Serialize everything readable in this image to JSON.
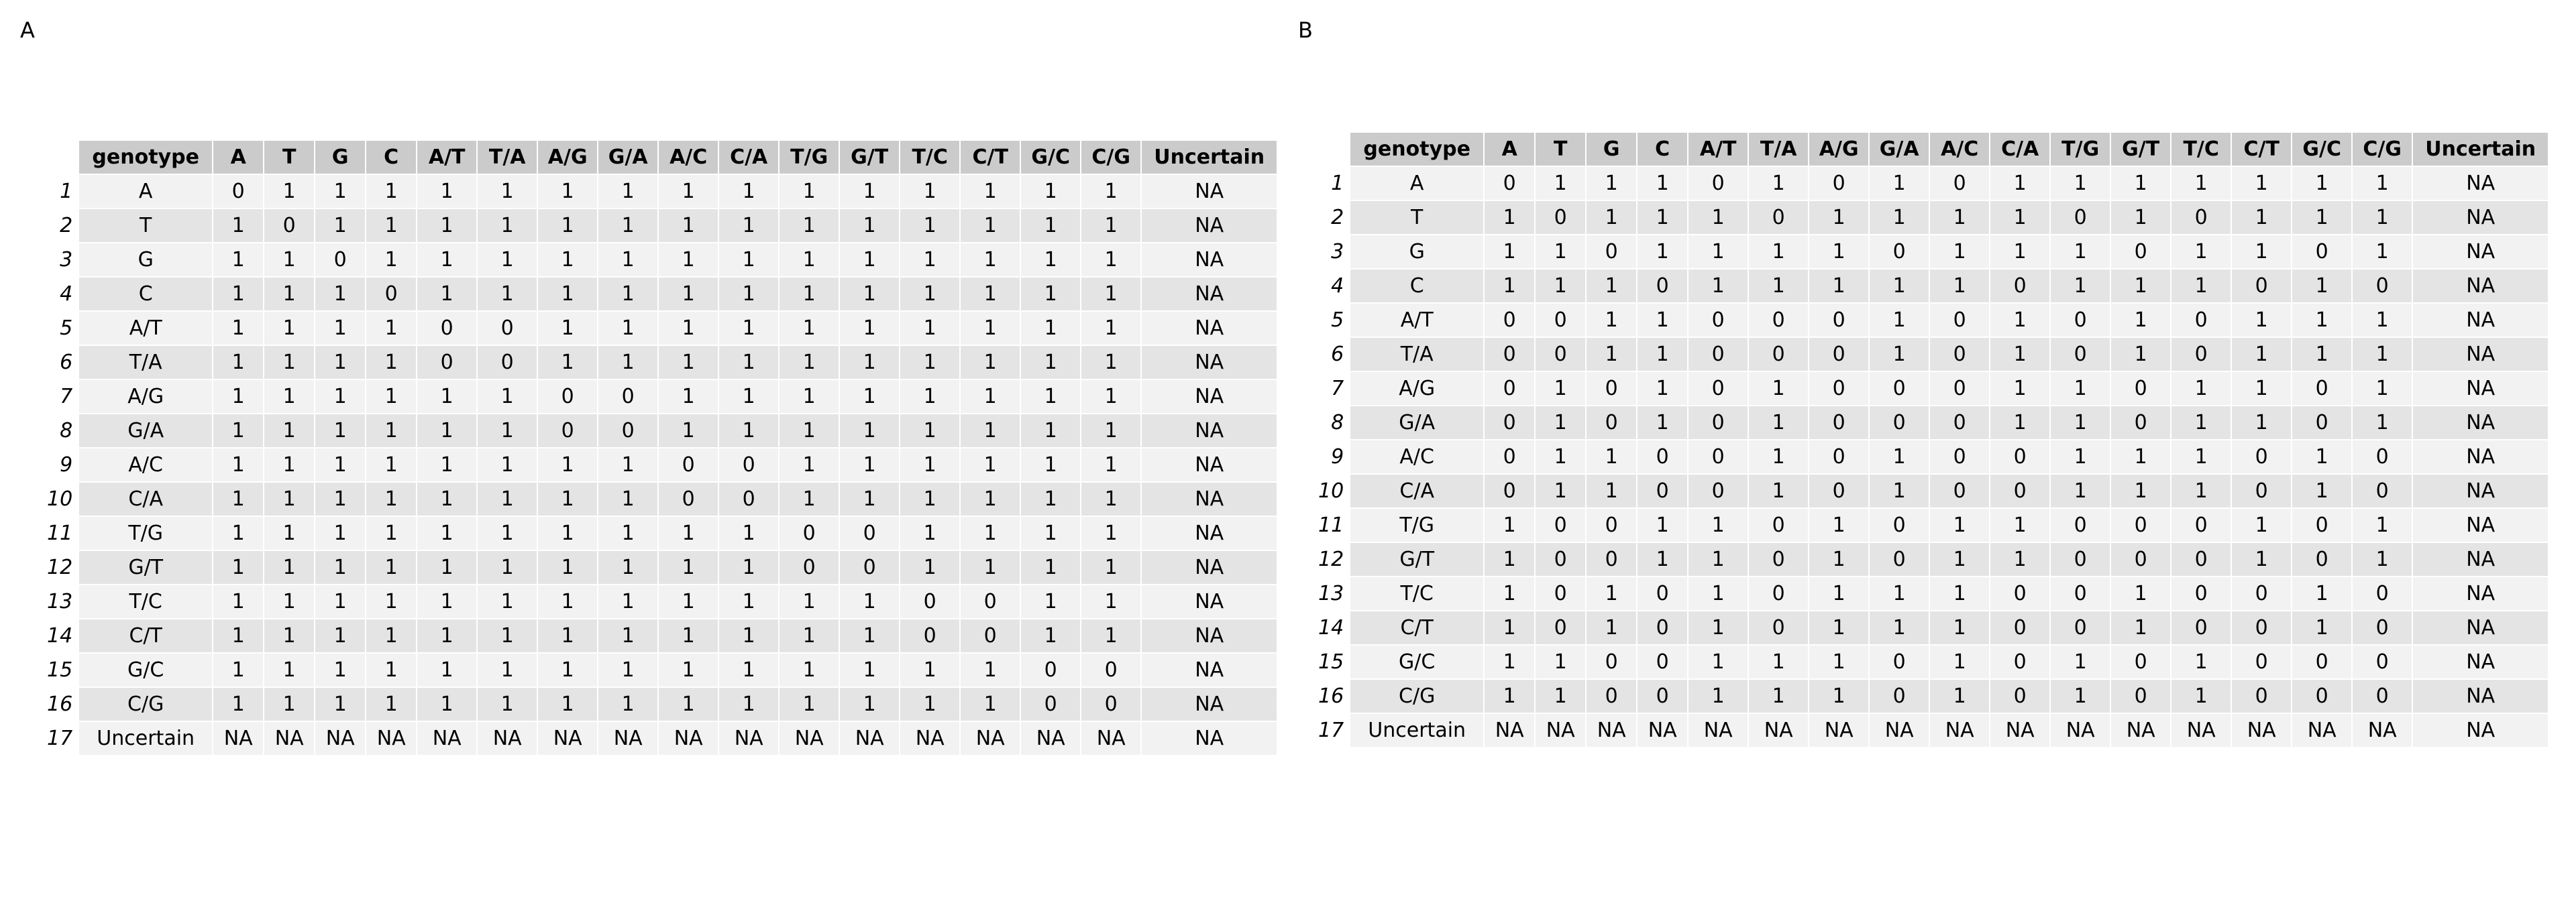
{
  "panels": [
    {
      "label": "A",
      "columns": [
        "genotype",
        "A",
        "T",
        "G",
        "C",
        "A/T",
        "T/A",
        "A/G",
        "G/A",
        "A/C",
        "C/A",
        "T/G",
        "G/T",
        "T/C",
        "C/T",
        "G/C",
        "C/G",
        "Uncertain"
      ],
      "rows": [
        [
          "1",
          "A",
          "0",
          "1",
          "1",
          "1",
          "1",
          "1",
          "1",
          "1",
          "1",
          "1",
          "1",
          "1",
          "1",
          "1",
          "1",
          "1",
          "NA"
        ],
        [
          "2",
          "T",
          "1",
          "0",
          "1",
          "1",
          "1",
          "1",
          "1",
          "1",
          "1",
          "1",
          "1",
          "1",
          "1",
          "1",
          "1",
          "1",
          "NA"
        ],
        [
          "3",
          "G",
          "1",
          "1",
          "0",
          "1",
          "1",
          "1",
          "1",
          "1",
          "1",
          "1",
          "1",
          "1",
          "1",
          "1",
          "1",
          "1",
          "NA"
        ],
        [
          "4",
          "C",
          "1",
          "1",
          "1",
          "0",
          "1",
          "1",
          "1",
          "1",
          "1",
          "1",
          "1",
          "1",
          "1",
          "1",
          "1",
          "1",
          "NA"
        ],
        [
          "5",
          "A/T",
          "1",
          "1",
          "1",
          "1",
          "0",
          "0",
          "1",
          "1",
          "1",
          "1",
          "1",
          "1",
          "1",
          "1",
          "1",
          "1",
          "NA"
        ],
        [
          "6",
          "T/A",
          "1",
          "1",
          "1",
          "1",
          "0",
          "0",
          "1",
          "1",
          "1",
          "1",
          "1",
          "1",
          "1",
          "1",
          "1",
          "1",
          "NA"
        ],
        [
          "7",
          "A/G",
          "1",
          "1",
          "1",
          "1",
          "1",
          "1",
          "0",
          "0",
          "1",
          "1",
          "1",
          "1",
          "1",
          "1",
          "1",
          "1",
          "NA"
        ],
        [
          "8",
          "G/A",
          "1",
          "1",
          "1",
          "1",
          "1",
          "1",
          "0",
          "0",
          "1",
          "1",
          "1",
          "1",
          "1",
          "1",
          "1",
          "1",
          "NA"
        ],
        [
          "9",
          "A/C",
          "1",
          "1",
          "1",
          "1",
          "1",
          "1",
          "1",
          "1",
          "0",
          "0",
          "1",
          "1",
          "1",
          "1",
          "1",
          "1",
          "NA"
        ],
        [
          "10",
          "C/A",
          "1",
          "1",
          "1",
          "1",
          "1",
          "1",
          "1",
          "1",
          "0",
          "0",
          "1",
          "1",
          "1",
          "1",
          "1",
          "1",
          "NA"
        ],
        [
          "11",
          "T/G",
          "1",
          "1",
          "1",
          "1",
          "1",
          "1",
          "1",
          "1",
          "1",
          "1",
          "0",
          "0",
          "1",
          "1",
          "1",
          "1",
          "NA"
        ],
        [
          "12",
          "G/T",
          "1",
          "1",
          "1",
          "1",
          "1",
          "1",
          "1",
          "1",
          "1",
          "1",
          "0",
          "0",
          "1",
          "1",
          "1",
          "1",
          "NA"
        ],
        [
          "13",
          "T/C",
          "1",
          "1",
          "1",
          "1",
          "1",
          "1",
          "1",
          "1",
          "1",
          "1",
          "1",
          "1",
          "0",
          "0",
          "1",
          "1",
          "NA"
        ],
        [
          "14",
          "C/T",
          "1",
          "1",
          "1",
          "1",
          "1",
          "1",
          "1",
          "1",
          "1",
          "1",
          "1",
          "1",
          "0",
          "0",
          "1",
          "1",
          "NA"
        ],
        [
          "15",
          "G/C",
          "1",
          "1",
          "1",
          "1",
          "1",
          "1",
          "1",
          "1",
          "1",
          "1",
          "1",
          "1",
          "1",
          "1",
          "0",
          "0",
          "NA"
        ],
        [
          "16",
          "C/G",
          "1",
          "1",
          "1",
          "1",
          "1",
          "1",
          "1",
          "1",
          "1",
          "1",
          "1",
          "1",
          "1",
          "1",
          "0",
          "0",
          "NA"
        ],
        [
          "17",
          "Uncertain",
          "NA",
          "NA",
          "NA",
          "NA",
          "NA",
          "NA",
          "NA",
          "NA",
          "NA",
          "NA",
          "NA",
          "NA",
          "NA",
          "NA",
          "NA",
          "NA",
          "NA"
        ]
      ]
    },
    {
      "label": "B",
      "columns": [
        "genotype",
        "A",
        "T",
        "G",
        "C",
        "A/T",
        "T/A",
        "A/G",
        "G/A",
        "A/C",
        "C/A",
        "T/G",
        "G/T",
        "T/C",
        "C/T",
        "G/C",
        "C/G",
        "Uncertain"
      ],
      "rows": [
        [
          "1",
          "A",
          "0",
          "1",
          "1",
          "1",
          "0",
          "1",
          "0",
          "1",
          "0",
          "1",
          "1",
          "1",
          "1",
          "1",
          "1",
          "1",
          "NA"
        ],
        [
          "2",
          "T",
          "1",
          "0",
          "1",
          "1",
          "1",
          "0",
          "1",
          "1",
          "1",
          "1",
          "0",
          "1",
          "0",
          "1",
          "1",
          "1",
          "NA"
        ],
        [
          "3",
          "G",
          "1",
          "1",
          "0",
          "1",
          "1",
          "1",
          "1",
          "0",
          "1",
          "1",
          "1",
          "0",
          "1",
          "1",
          "0",
          "1",
          "NA"
        ],
        [
          "4",
          "C",
          "1",
          "1",
          "1",
          "0",
          "1",
          "1",
          "1",
          "1",
          "1",
          "0",
          "1",
          "1",
          "1",
          "0",
          "1",
          "0",
          "NA"
        ],
        [
          "5",
          "A/T",
          "0",
          "0",
          "1",
          "1",
          "0",
          "0",
          "0",
          "1",
          "0",
          "1",
          "0",
          "1",
          "0",
          "1",
          "1",
          "1",
          "NA"
        ],
        [
          "6",
          "T/A",
          "0",
          "0",
          "1",
          "1",
          "0",
          "0",
          "0",
          "1",
          "0",
          "1",
          "0",
          "1",
          "0",
          "1",
          "1",
          "1",
          "NA"
        ],
        [
          "7",
          "A/G",
          "0",
          "1",
          "0",
          "1",
          "0",
          "1",
          "0",
          "0",
          "0",
          "1",
          "1",
          "0",
          "1",
          "1",
          "0",
          "1",
          "NA"
        ],
        [
          "8",
          "G/A",
          "0",
          "1",
          "0",
          "1",
          "0",
          "1",
          "0",
          "0",
          "0",
          "1",
          "1",
          "0",
          "1",
          "1",
          "0",
          "1",
          "NA"
        ],
        [
          "9",
          "A/C",
          "0",
          "1",
          "1",
          "0",
          "0",
          "1",
          "0",
          "1",
          "0",
          "0",
          "1",
          "1",
          "1",
          "0",
          "1",
          "0",
          "NA"
        ],
        [
          "10",
          "C/A",
          "0",
          "1",
          "1",
          "0",
          "0",
          "1",
          "0",
          "1",
          "0",
          "0",
          "1",
          "1",
          "1",
          "0",
          "1",
          "0",
          "NA"
        ],
        [
          "11",
          "T/G",
          "1",
          "0",
          "0",
          "1",
          "1",
          "0",
          "1",
          "0",
          "1",
          "1",
          "0",
          "0",
          "0",
          "1",
          "0",
          "1",
          "NA"
        ],
        [
          "12",
          "G/T",
          "1",
          "0",
          "0",
          "1",
          "1",
          "0",
          "1",
          "0",
          "1",
          "1",
          "0",
          "0",
          "0",
          "1",
          "0",
          "1",
          "NA"
        ],
        [
          "13",
          "T/C",
          "1",
          "0",
          "1",
          "0",
          "1",
          "0",
          "1",
          "1",
          "1",
          "0",
          "0",
          "1",
          "0",
          "0",
          "1",
          "0",
          "NA"
        ],
        [
          "14",
          "C/T",
          "1",
          "0",
          "1",
          "0",
          "1",
          "0",
          "1",
          "1",
          "1",
          "0",
          "0",
          "1",
          "0",
          "0",
          "1",
          "0",
          "NA"
        ],
        [
          "15",
          "G/C",
          "1",
          "1",
          "0",
          "0",
          "1",
          "1",
          "1",
          "0",
          "1",
          "0",
          "1",
          "0",
          "1",
          "0",
          "0",
          "0",
          "NA"
        ],
        [
          "16",
          "C/G",
          "1",
          "1",
          "0",
          "0",
          "1",
          "1",
          "1",
          "0",
          "1",
          "0",
          "1",
          "0",
          "1",
          "0",
          "0",
          "0",
          "NA"
        ],
        [
          "17",
          "Uncertain",
          "NA",
          "NA",
          "NA",
          "NA",
          "NA",
          "NA",
          "NA",
          "NA",
          "NA",
          "NA",
          "NA",
          "NA",
          "NA",
          "NA",
          "NA",
          "NA",
          "NA"
        ]
      ]
    }
  ]
}
